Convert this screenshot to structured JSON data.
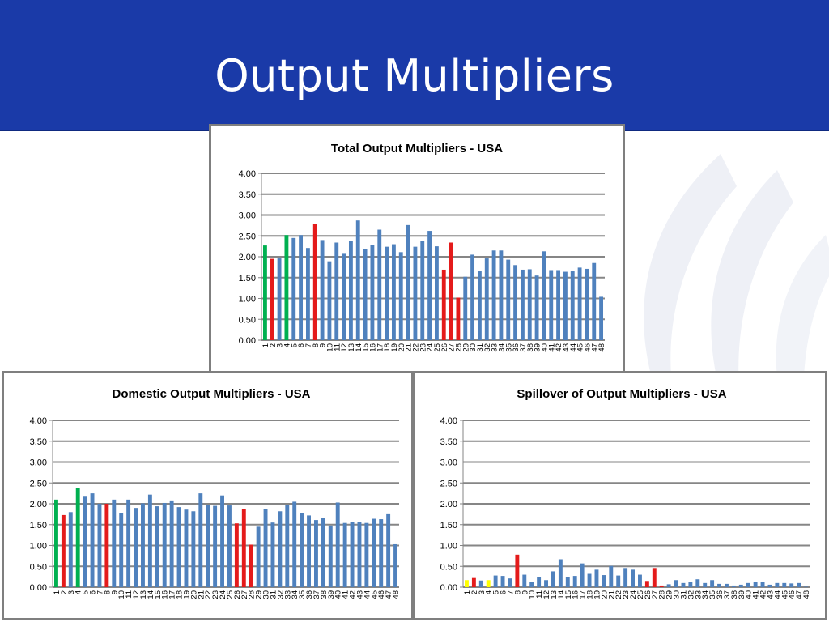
{
  "slide": {
    "title": "Output Multipliers"
  },
  "colors": {
    "title_bar": "#1a3aa8",
    "blue": "#4f81bd",
    "green": "#00b050",
    "red": "#e41b1b",
    "yellow": "#ffff00",
    "gridline": "#868686"
  },
  "chart_data": [
    {
      "type": "bar",
      "title": "Total Output Multipliers - USA",
      "xlabel": "",
      "ylabel": "",
      "ylim": [
        0,
        4
      ],
      "yticks": [
        "0.00",
        "0.50",
        "1.00",
        "1.50",
        "2.00",
        "2.50",
        "3.00",
        "3.50",
        "4.00"
      ],
      "categories": [
        "1",
        "2",
        "3",
        "4",
        "5",
        "6",
        "7",
        "8",
        "9",
        "10",
        "11",
        "12",
        "13",
        "14",
        "15",
        "16",
        "17",
        "18",
        "19",
        "20",
        "21",
        "22",
        "23",
        "24",
        "25",
        "26",
        "27",
        "28",
        "29",
        "30",
        "31",
        "32",
        "33",
        "34",
        "35",
        "36",
        "37",
        "38",
        "39",
        "40",
        "41",
        "42",
        "43",
        "44",
        "45",
        "46",
        "47",
        "48"
      ],
      "values": [
        2.27,
        1.95,
        1.96,
        2.52,
        2.45,
        2.52,
        2.21,
        2.78,
        2.4,
        1.89,
        2.34,
        2.07,
        2.37,
        2.87,
        2.18,
        2.28,
        2.65,
        2.24,
        2.3,
        2.11,
        2.76,
        2.24,
        2.38,
        2.62,
        2.25,
        1.69,
        2.34,
        1.02,
        1.52,
        2.05,
        1.65,
        1.96,
        2.15,
        2.15,
        1.93,
        1.8,
        1.69,
        1.7,
        1.55,
        2.13,
        1.68,
        1.68,
        1.64,
        1.65,
        1.74,
        1.71,
        1.85,
        1.04
      ],
      "bar_colors": [
        "green",
        "red",
        "blue",
        "green",
        "blue",
        "blue",
        "blue",
        "red",
        "blue",
        "blue",
        "blue",
        "blue",
        "blue",
        "blue",
        "blue",
        "blue",
        "blue",
        "blue",
        "blue",
        "blue",
        "blue",
        "blue",
        "blue",
        "blue",
        "blue",
        "red",
        "red",
        "red",
        "blue",
        "blue",
        "blue",
        "blue",
        "blue",
        "blue",
        "blue",
        "blue",
        "blue",
        "blue",
        "blue",
        "blue",
        "blue",
        "blue",
        "blue",
        "blue",
        "blue",
        "blue",
        "blue",
        "blue"
      ],
      "grid": true
    },
    {
      "type": "bar",
      "title": "Domestic Output Multipliers - USA",
      "xlabel": "",
      "ylabel": "",
      "ylim": [
        0,
        4
      ],
      "yticks": [
        "0.00",
        "0.50",
        "1.00",
        "1.50",
        "2.00",
        "2.50",
        "3.00",
        "3.50",
        "4.00"
      ],
      "categories": [
        "1",
        "2",
        "3",
        "4",
        "5",
        "6",
        "7",
        "8",
        "9",
        "10",
        "11",
        "12",
        "13",
        "14",
        "15",
        "16",
        "17",
        "18",
        "19",
        "20",
        "21",
        "22",
        "23",
        "24",
        "25",
        "26",
        "27",
        "28",
        "29",
        "30",
        "31",
        "32",
        "33",
        "34",
        "35",
        "36",
        "37",
        "38",
        "39",
        "40",
        "41",
        "42",
        "43",
        "44",
        "45",
        "46",
        "47",
        "48"
      ],
      "values": [
        2.1,
        1.73,
        1.8,
        2.37,
        2.17,
        2.25,
        2.0,
        2.0,
        2.1,
        1.77,
        2.1,
        1.9,
        2.01,
        2.22,
        1.94,
        2.02,
        2.08,
        1.92,
        1.86,
        1.82,
        2.25,
        1.97,
        1.95,
        2.2,
        1.96,
        1.53,
        1.87,
        1.02,
        1.45,
        1.88,
        1.55,
        1.82,
        1.97,
        2.05,
        1.77,
        1.72,
        1.61,
        1.67,
        1.48,
        2.03,
        1.54,
        1.56,
        1.56,
        1.54,
        1.64,
        1.63,
        1.75,
        1.03
      ],
      "bar_colors": [
        "green",
        "red",
        "blue",
        "green",
        "blue",
        "blue",
        "blue",
        "red",
        "blue",
        "blue",
        "blue",
        "blue",
        "blue",
        "blue",
        "blue",
        "blue",
        "blue",
        "blue",
        "blue",
        "blue",
        "blue",
        "blue",
        "blue",
        "blue",
        "blue",
        "red",
        "red",
        "red",
        "blue",
        "blue",
        "blue",
        "blue",
        "blue",
        "blue",
        "blue",
        "blue",
        "blue",
        "blue",
        "blue",
        "blue",
        "blue",
        "blue",
        "blue",
        "blue",
        "blue",
        "blue",
        "blue",
        "blue"
      ],
      "grid": true
    },
    {
      "type": "bar",
      "title": "Spillover of Output Multipliers - USA",
      "xlabel": "",
      "ylabel": "",
      "ylim": [
        0,
        4
      ],
      "yticks": [
        "0.00",
        "0.50",
        "1.00",
        "1.50",
        "2.00",
        "2.50",
        "3.00",
        "3.50",
        "4.00"
      ],
      "categories": [
        "1",
        "2",
        "3",
        "4",
        "5",
        "6",
        "7",
        "8",
        "9",
        "10",
        "11",
        "12",
        "13",
        "14",
        "15",
        "16",
        "17",
        "18",
        "19",
        "20",
        "21",
        "22",
        "23",
        "24",
        "25",
        "26",
        "27",
        "28",
        "29",
        "30",
        "31",
        "32",
        "33",
        "34",
        "35",
        "36",
        "37",
        "38",
        "39",
        "40",
        "41",
        "42",
        "43",
        "44",
        "45",
        "46",
        "47",
        "48"
      ],
      "values": [
        0.17,
        0.22,
        0.16,
        0.17,
        0.28,
        0.27,
        0.21,
        0.78,
        0.3,
        0.12,
        0.25,
        0.17,
        0.38,
        0.67,
        0.24,
        0.27,
        0.57,
        0.32,
        0.42,
        0.29,
        0.51,
        0.28,
        0.46,
        0.42,
        0.3,
        0.15,
        0.46,
        0.04,
        0.07,
        0.17,
        0.1,
        0.13,
        0.19,
        0.1,
        0.17,
        0.08,
        0.08,
        0.04,
        0.06,
        0.1,
        0.13,
        0.12,
        0.06,
        0.1,
        0.1,
        0.09,
        0.1,
        0.01
      ],
      "bar_colors": [
        "yellow",
        "red",
        "blue",
        "yellow",
        "blue",
        "blue",
        "blue",
        "red",
        "blue",
        "blue",
        "blue",
        "blue",
        "blue",
        "blue",
        "blue",
        "blue",
        "blue",
        "blue",
        "blue",
        "blue",
        "blue",
        "blue",
        "blue",
        "blue",
        "blue",
        "red",
        "red",
        "red",
        "blue",
        "blue",
        "blue",
        "blue",
        "blue",
        "blue",
        "blue",
        "blue",
        "blue",
        "blue",
        "blue",
        "blue",
        "blue",
        "blue",
        "blue",
        "blue",
        "blue",
        "blue",
        "blue",
        "blue"
      ],
      "grid": true
    }
  ]
}
